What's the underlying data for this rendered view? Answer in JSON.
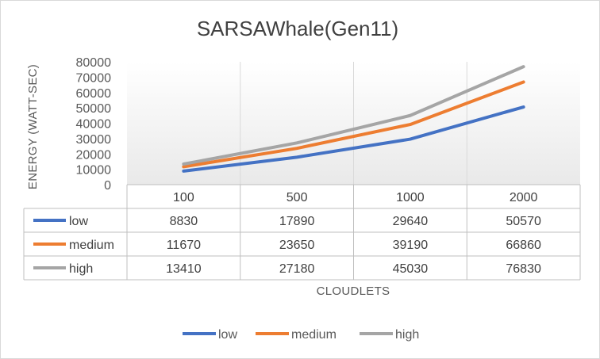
{
  "chart_data": {
    "type": "line",
    "title": "SARSAWhale(Gen11)",
    "xlabel": "CLOUDLETS",
    "ylabel": "ENERGY (WATT-SEC)",
    "categories": [
      "100",
      "500",
      "1000",
      "2000"
    ],
    "ylim": [
      0,
      80000
    ],
    "yticks": [
      "0",
      "10000",
      "20000",
      "30000",
      "40000",
      "50000",
      "60000",
      "70000",
      "80000"
    ],
    "series": [
      {
        "name": "low",
        "color": "#4472c4",
        "values": [
          8830,
          17890,
          29640,
          50570
        ]
      },
      {
        "name": "medium",
        "color": "#ed7d31",
        "values": [
          11670,
          23650,
          39190,
          66860
        ]
      },
      {
        "name": "high",
        "color": "#a5a5a5",
        "values": [
          13410,
          27180,
          45030,
          76830
        ]
      }
    ],
    "data_table": true,
    "legend_position": "bottom",
    "grid": "vertical"
  }
}
